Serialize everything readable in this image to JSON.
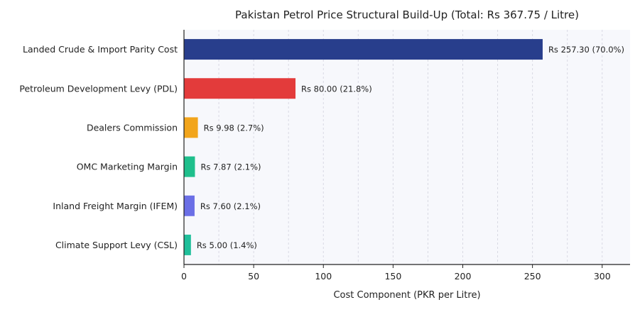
{
  "chart_data": {
    "type": "bar",
    "orientation": "horizontal",
    "title": "Pakistan Petrol Price Structural Build-Up (Total: Rs 367.75 / Litre)",
    "xlabel": "Cost Component (PKR per Litre)",
    "ylabel": "",
    "xlim": [
      0,
      320
    ],
    "xticks": [
      "0",
      "50",
      "100",
      "150",
      "200",
      "250",
      "300"
    ],
    "grid": "on",
    "categories": [
      "Landed Crude & Import Parity Cost",
      "Petroleum Development Levy (PDL)",
      "Dealers Commission",
      "OMC Marketing Margin",
      "Inland Freight Margin (IFEM)",
      "Climate Support Levy (CSL)"
    ],
    "values": [
      257.3,
      80.0,
      9.98,
      7.87,
      7.6,
      5.0
    ],
    "labels": [
      "Rs 257.30 (70.0%)",
      "Rs 80.00 (21.8%)",
      "Rs 9.98 (2.7%)",
      "Rs 7.87 (2.1%)",
      "Rs 7.60 (2.1%)",
      "Rs 5.00 (1.4%)"
    ],
    "colors": [
      "#283e8c",
      "#e33b3b",
      "#f2a51c",
      "#1fbf8c",
      "#6b6fe6",
      "#1fbf9a"
    ]
  }
}
